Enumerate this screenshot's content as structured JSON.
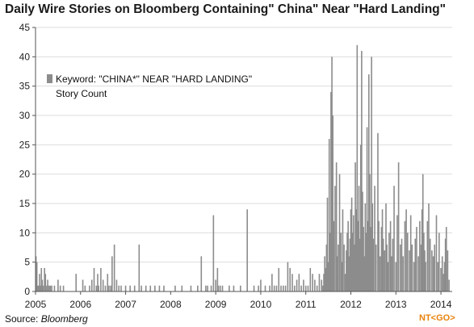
{
  "chart_data": {
    "type": "bar",
    "title": "Daily Wire Stories on Bloomberg Containing\" China\" Near \"Hard Landing\"",
    "legend": {
      "series_label": "Keyword: \"CHINA*\" NEAR \"HARD LANDING\"",
      "series_sublabel": "Story Count",
      "placement": "top-left"
    },
    "source_label": "Source:",
    "source_name": "Bloomberg",
    "badge": "NT<GO>",
    "x_ticks": [
      "2005",
      "2006",
      "2007",
      "2008",
      "2009",
      "2010",
      "2011",
      "2012",
      "2013",
      "2014"
    ],
    "y_ticks": [
      "0",
      "5",
      "10",
      "15",
      "20",
      "25",
      "30",
      "35",
      "40",
      "45"
    ],
    "xlim": [
      2005.0,
      2014.25
    ],
    "ylim": [
      0,
      45
    ],
    "grid": "horizontal",
    "colors": {
      "bars": "#8c8c8c",
      "axis": "#555555",
      "grid": "#dddddd",
      "badge": "#e8820c"
    },
    "x": [
      2005.01,
      2005.02,
      2005.03,
      2005.05,
      2005.07,
      2005.09,
      2005.11,
      2005.13,
      2005.15,
      2005.17,
      2005.2,
      2005.22,
      2005.25,
      2005.27,
      2005.3,
      2005.33,
      2005.36,
      2005.42,
      2005.5,
      2005.55,
      2005.62,
      2005.9,
      2006.05,
      2006.1,
      2006.2,
      2006.25,
      2006.3,
      2006.35,
      2006.38,
      2006.4,
      2006.45,
      2006.5,
      2006.55,
      2006.6,
      2006.63,
      2006.67,
      2006.7,
      2006.75,
      2006.8,
      2006.85,
      2006.9,
      2007.0,
      2007.1,
      2007.2,
      2007.3,
      2007.35,
      2007.45,
      2007.55,
      2007.65,
      2007.75,
      2007.85,
      2008.1,
      2008.25,
      2008.45,
      2008.6,
      2008.68,
      2008.78,
      2008.82,
      2008.9,
      2008.95,
      2009.0,
      2009.04,
      2009.06,
      2009.1,
      2009.15,
      2009.3,
      2009.4,
      2009.55,
      2009.7,
      2009.85,
      2009.95,
      2010.0,
      2010.1,
      2010.2,
      2010.25,
      2010.3,
      2010.35,
      2010.4,
      2010.45,
      2010.5,
      2010.55,
      2010.6,
      2010.65,
      2010.7,
      2010.75,
      2010.8,
      2010.85,
      2010.9,
      2010.95,
      2011.0,
      2011.05,
      2011.1,
      2011.15,
      2011.2,
      2011.25,
      2011.3,
      2011.35,
      2011.38,
      2011.4,
      2011.42,
      2011.44,
      2011.46,
      2011.48,
      2011.5,
      2011.52,
      2011.54,
      2011.56,
      2011.58,
      2011.6,
      2011.62,
      2011.65,
      2011.68,
      2011.7,
      2011.72,
      2011.75,
      2011.78,
      2011.8,
      2011.82,
      2011.85,
      2011.88,
      2011.9,
      2011.92,
      2011.94,
      2011.96,
      2011.98,
      2012.0,
      2012.02,
      2012.04,
      2012.06,
      2012.08,
      2012.1,
      2012.12,
      2012.14,
      2012.16,
      2012.18,
      2012.2,
      2012.22,
      2012.24,
      2012.26,
      2012.28,
      2012.3,
      2012.32,
      2012.34,
      2012.36,
      2012.38,
      2012.4,
      2012.42,
      2012.44,
      2012.46,
      2012.48,
      2012.5,
      2012.53,
      2012.56,
      2012.6,
      2012.62,
      2012.65,
      2012.68,
      2012.7,
      2012.72,
      2012.75,
      2012.78,
      2012.8,
      2012.82,
      2012.85,
      2012.88,
      2012.9,
      2012.93,
      2012.96,
      2013.0,
      2013.03,
      2013.06,
      2013.1,
      2013.13,
      2013.16,
      2013.2,
      2013.23,
      2013.26,
      2013.3,
      2013.33,
      2013.36,
      2013.4,
      2013.43,
      2013.46,
      2013.5,
      2013.53,
      2013.56,
      2013.58,
      2013.6,
      2013.62,
      2013.64,
      2013.66,
      2013.7,
      2013.73,
      2013.76,
      2013.8,
      2013.83,
      2013.86,
      2013.9,
      2013.93,
      2013.96,
      2014.0,
      2014.03,
      2014.06,
      2014.08,
      2014.1,
      2014.12,
      2014.15,
      2014.18
    ],
    "values": [
      6,
      1,
      5,
      1,
      1,
      3,
      1,
      4,
      2,
      1,
      4,
      3,
      1,
      2,
      1,
      1,
      1,
      1,
      2,
      1,
      1,
      3,
      2,
      1,
      1,
      2,
      4,
      1,
      3,
      1,
      4,
      2,
      1,
      3,
      1,
      1,
      6,
      8,
      2,
      1,
      1,
      1,
      1,
      1,
      8,
      1,
      1,
      1,
      1,
      1,
      1,
      1,
      1,
      1,
      1,
      6,
      1,
      1,
      1,
      13,
      2,
      4,
      1,
      1,
      1,
      1,
      1,
      1,
      14,
      1,
      1,
      2,
      1,
      1,
      3,
      1,
      1,
      4,
      1,
      1,
      1,
      5,
      4,
      3,
      1,
      2,
      3,
      1,
      2,
      1,
      1,
      4,
      3,
      2,
      1,
      3,
      2,
      1,
      3,
      6,
      4,
      8,
      16,
      5,
      26,
      10,
      34,
      40,
      30,
      12,
      18,
      22,
      6,
      8,
      20,
      10,
      5,
      14,
      8,
      3,
      7,
      10,
      12,
      6,
      9,
      14,
      16,
      10,
      13,
      8,
      22,
      14,
      42,
      12,
      18,
      9,
      25,
      41,
      17,
      11,
      6,
      15,
      10,
      28,
      12,
      37,
      20,
      11,
      40,
      15,
      9,
      18,
      8,
      27,
      12,
      6,
      11,
      14,
      9,
      7,
      15,
      8,
      5,
      10,
      12,
      6,
      9,
      18,
      5,
      13,
      22,
      8,
      9,
      6,
      12,
      14,
      10,
      7,
      13,
      8,
      5,
      9,
      11,
      6,
      12,
      8,
      14,
      20,
      10,
      7,
      5,
      12,
      15,
      9,
      7,
      6,
      8,
      13,
      5,
      10,
      4,
      6,
      3,
      5,
      9,
      11,
      7,
      2
    ]
  }
}
